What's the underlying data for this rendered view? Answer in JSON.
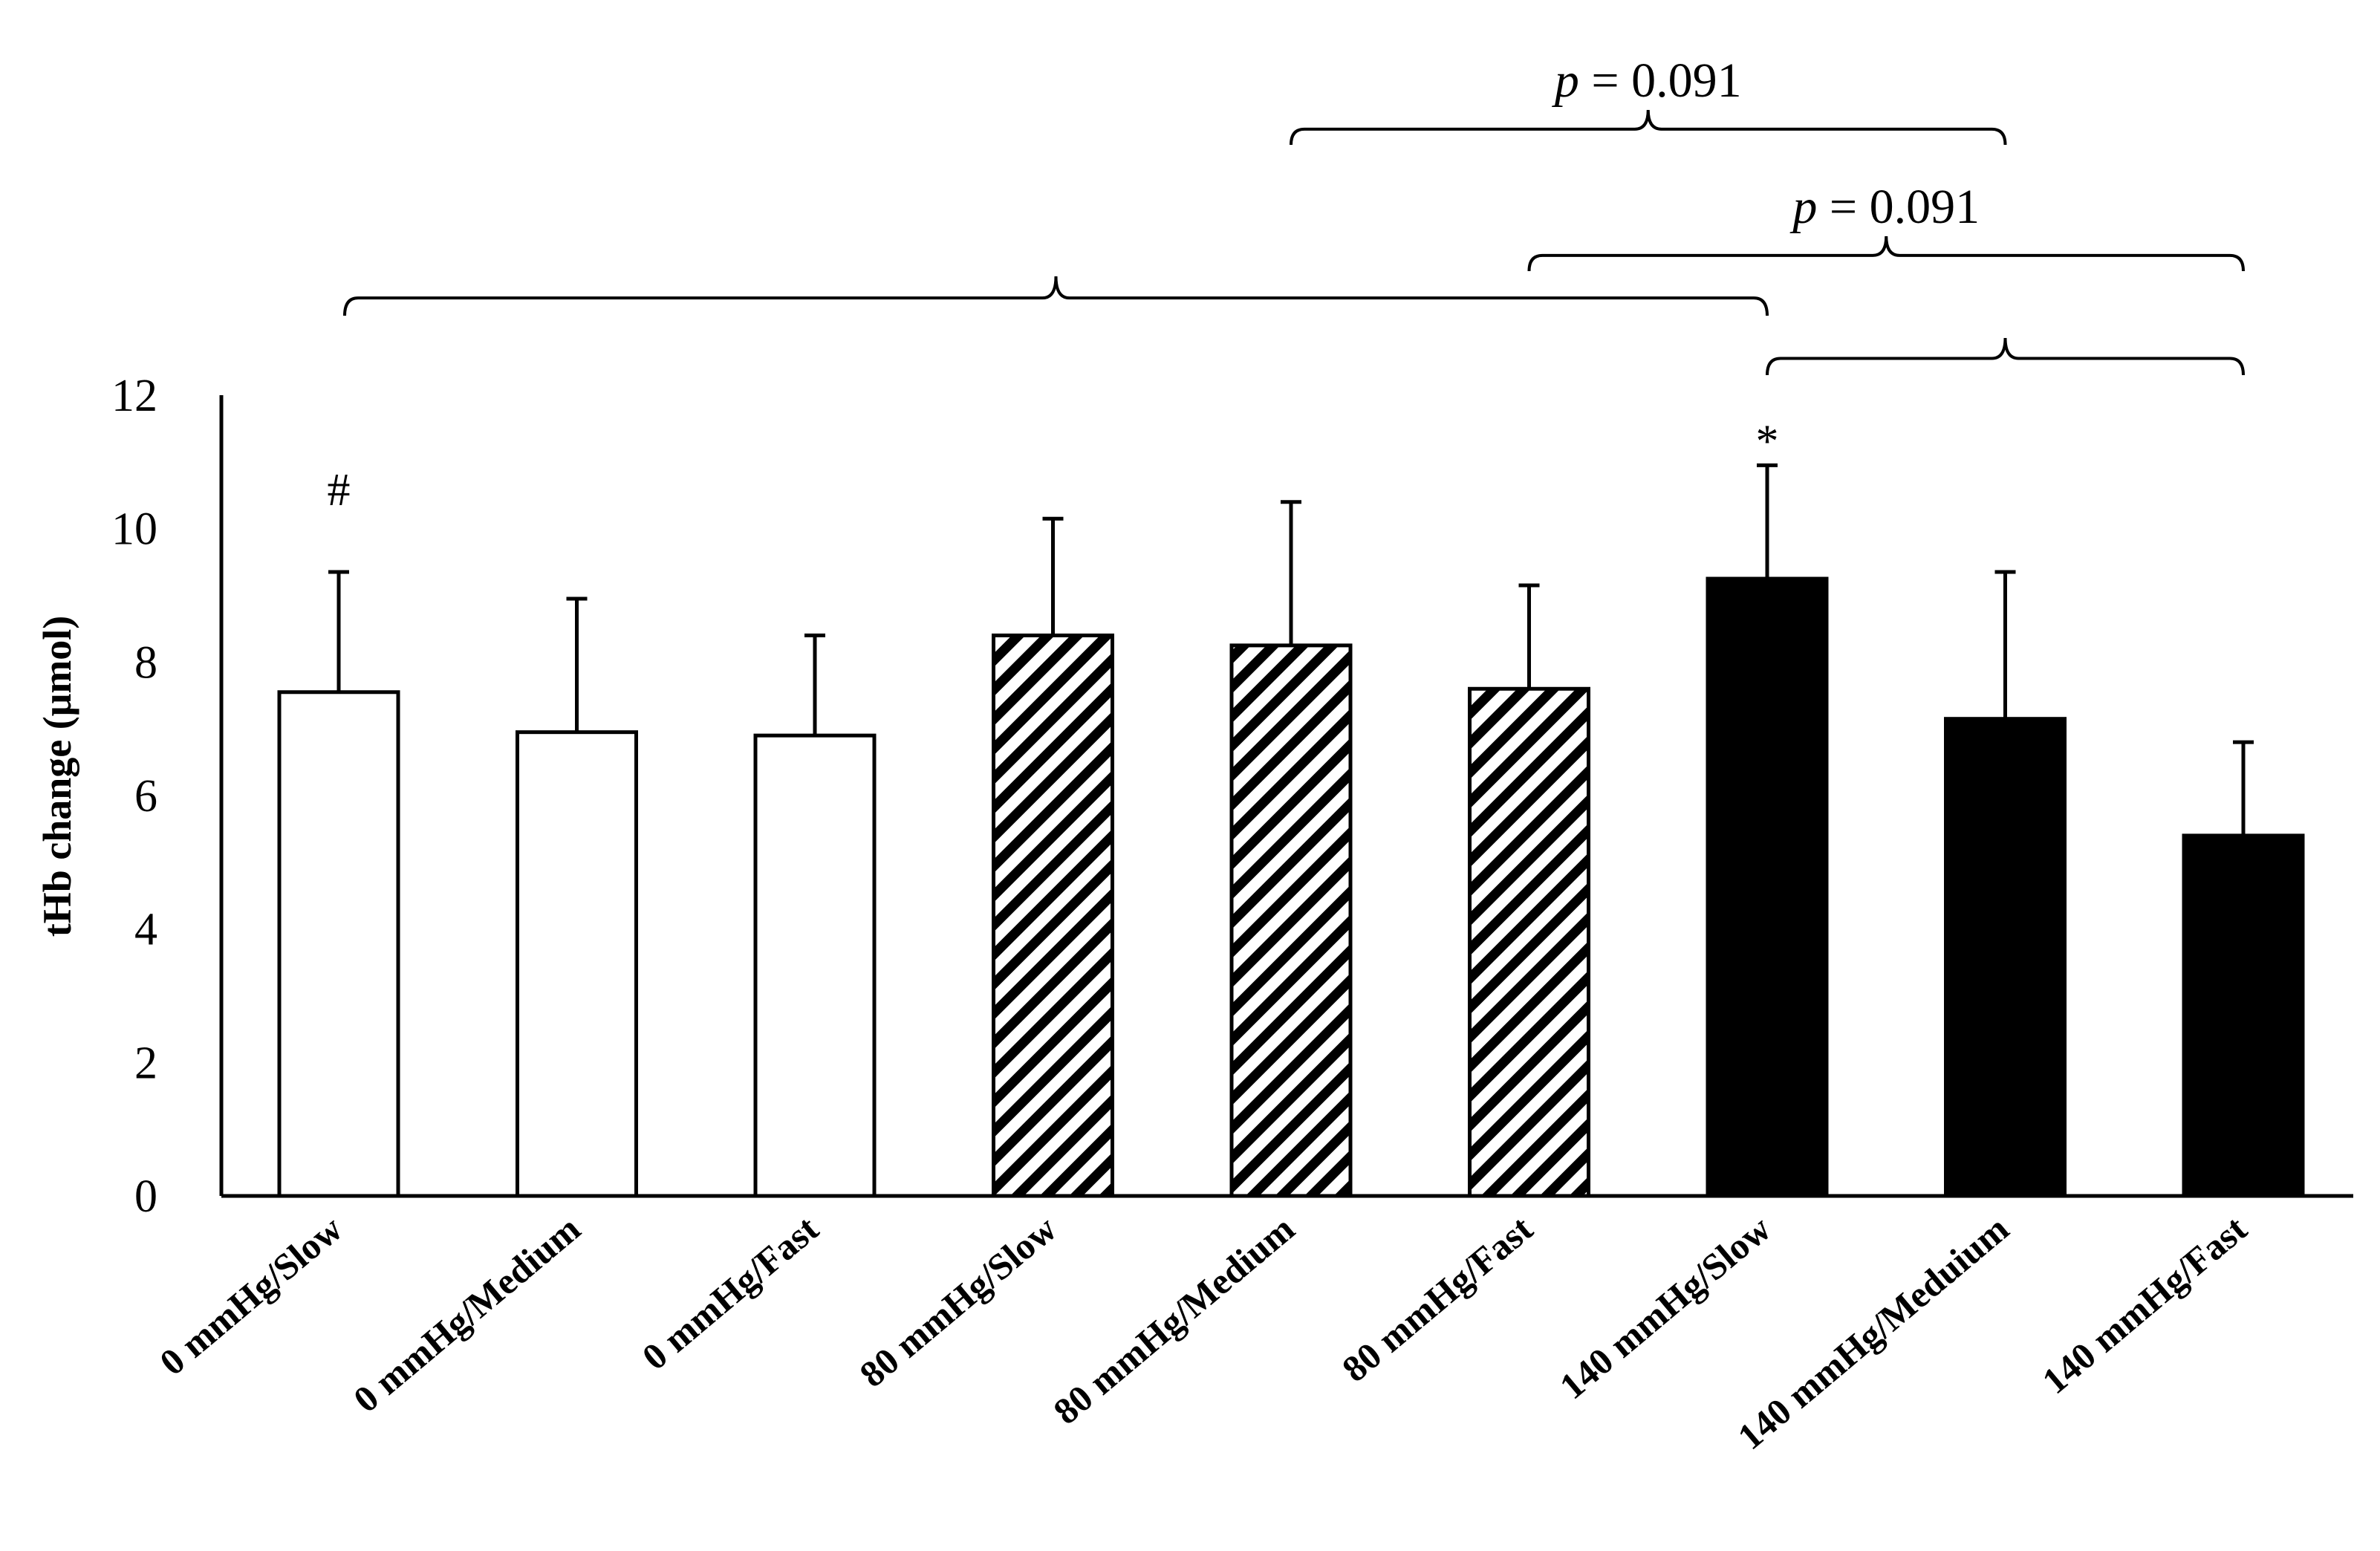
{
  "chart_data": {
    "type": "bar",
    "title": "",
    "xlabel": "",
    "ylabel": "tHb change (μmol)",
    "ylim": [
      0,
      12
    ],
    "yticks": [
      0,
      2,
      4,
      6,
      8,
      10,
      12
    ],
    "categories": [
      "0 mmHg/Slow",
      "0 mmHg/Medium",
      "0 mmHg/Fast",
      "80 mmHg/Slow",
      "80 mmHg/Medium",
      "80 mmHg/Fast",
      "140 mmHg/Slow",
      "140 mmHg/Meduium",
      "140 mmHg/Fast"
    ],
    "values": [
      7.55,
      6.95,
      6.9,
      8.4,
      8.25,
      7.6,
      9.25,
      7.15,
      5.4
    ],
    "errors": [
      1.8,
      2.0,
      1.5,
      1.75,
      2.15,
      1.55,
      1.7,
      2.2,
      1.4
    ],
    "fills": [
      "white",
      "white",
      "white",
      "hatched",
      "hatched",
      "hatched",
      "black",
      "black",
      "black"
    ],
    "bar_markers": [
      {
        "bar": 0,
        "symbol": "#"
      },
      {
        "bar": 6,
        "symbol": "*"
      }
    ],
    "brackets": [
      {
        "from": 4,
        "to": 7,
        "label_prefix": "p",
        "label_value": "= 0.091"
      },
      {
        "from": 5,
        "to": 8,
        "label_prefix": "p",
        "label_value": "= 0.091"
      },
      {
        "from": 0,
        "to": 6,
        "label_prefix": "",
        "label_value": ""
      },
      {
        "from": 6,
        "to": 8,
        "label_prefix": "",
        "label_value": ""
      }
    ],
    "colors": {
      "axis": "#000000",
      "black_bar": "#000000",
      "white_bar": "#ffffff",
      "hatch": "#000000"
    }
  }
}
